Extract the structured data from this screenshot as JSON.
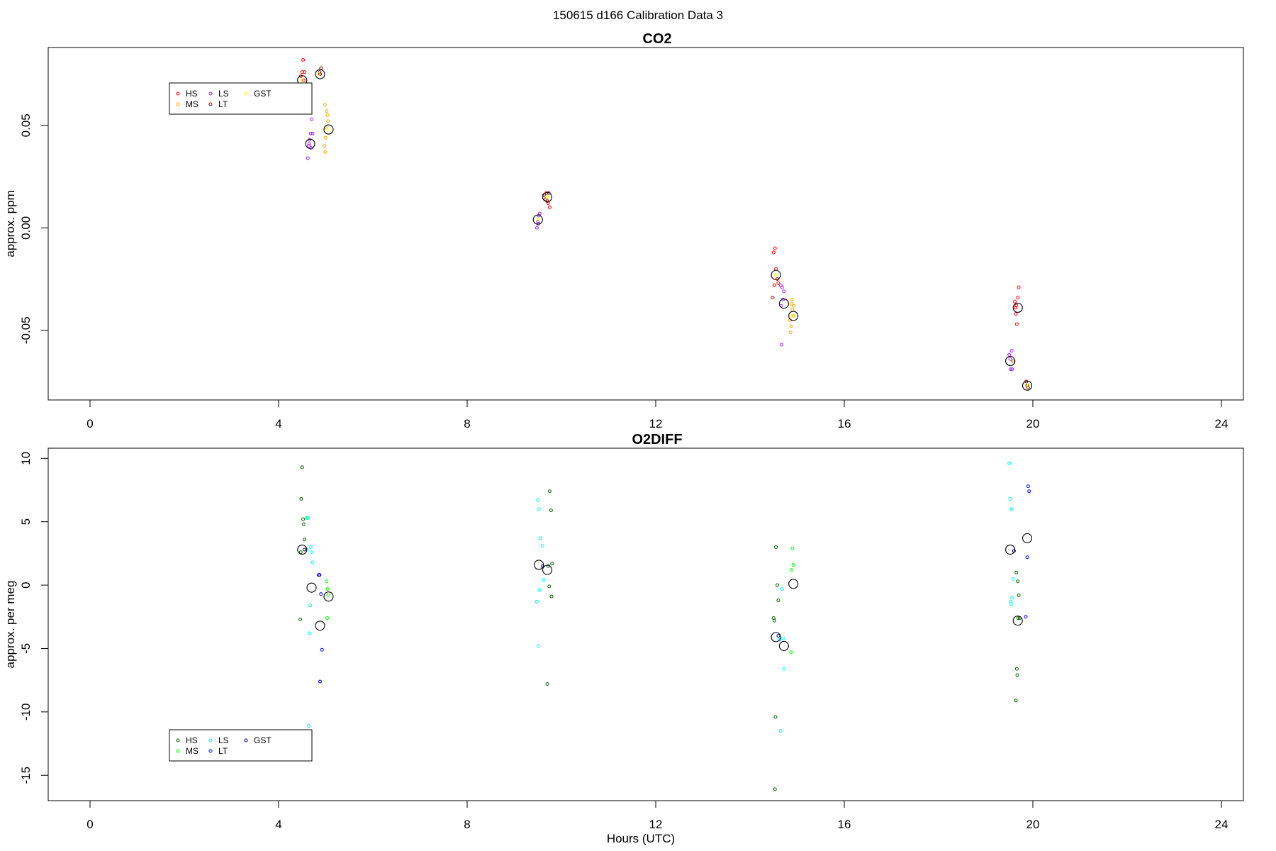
{
  "figure": {
    "title": "150615   d166   Calibration Data 3",
    "xlabel": "Hours (UTC)"
  },
  "chart_data": [
    {
      "type": "scatter",
      "title": "CO2",
      "xlabel": "",
      "ylabel": "approx. ppm",
      "xlim": [
        0,
        24
      ],
      "ylim": [
        -0.084,
        0.088
      ],
      "xticks": [
        0,
        4,
        8,
        12,
        16,
        20,
        24
      ],
      "xtick_labels": [
        "0",
        "4",
        "8",
        "12",
        "16",
        "20",
        "24"
      ],
      "yticks": [
        -0.05,
        0.0,
        0.05
      ],
      "ytick_labels": [
        "-0.05",
        "0.00",
        "0.05"
      ],
      "grid": false,
      "legend": {
        "placement": "top-left",
        "entries": [
          "HS",
          "MS",
          "LS",
          "LT",
          "GST"
        ]
      },
      "series": [
        {
          "name": "HS",
          "color": "#ff0000",
          "x": [
            4.47,
            4.5,
            4.52,
            4.55,
            4.53,
            4.5,
            9.68,
            9.72,
            9.75,
            14.5,
            14.53,
            14.55,
            14.58,
            14.52,
            14.6,
            14.48,
            19.62,
            19.65,
            19.7,
            19.68,
            19.64,
            19.66,
            19.63
          ],
          "y": [
            0.074,
            0.076,
            0.082,
            0.076,
            0.072,
            0.07,
            0.017,
            0.012,
            0.01,
            -0.012,
            -0.01,
            -0.02,
            -0.025,
            -0.028,
            -0.027,
            -0.034,
            -0.036,
            -0.038,
            -0.029,
            -0.034,
            -0.042,
            -0.047,
            -0.039
          ]
        },
        {
          "name": "MS",
          "color": "#ffa500",
          "x": [
            4.98,
            5.02,
            5.04,
            5.05,
            5.0,
            4.97,
            4.99,
            5.01,
            14.88,
            14.9,
            14.92,
            14.85,
            14.87,
            14.93,
            14.86,
            14.89
          ],
          "y": [
            0.06,
            0.057,
            0.055,
            0.052,
            0.044,
            0.04,
            0.037,
            0.049,
            -0.037,
            -0.04,
            -0.043,
            -0.045,
            -0.048,
            -0.038,
            -0.051,
            -0.035
          ]
        },
        {
          "name": "LS",
          "color": "#a020f0",
          "x": [
            4.62,
            4.65,
            4.68,
            4.7,
            4.72,
            4.64,
            4.66,
            4.69,
            9.48,
            9.5,
            9.52,
            9.54,
            9.51,
            14.65,
            14.68,
            14.72,
            14.7,
            14.67,
            14.66,
            19.5,
            19.52,
            19.55,
            19.58,
            19.53,
            19.56,
            19.6
          ],
          "y": [
            0.034,
            0.041,
            0.046,
            0.053,
            0.046,
            0.04,
            0.043,
            0.039,
            0.0,
            0.003,
            0.006,
            0.007,
            0.002,
            -0.028,
            -0.029,
            -0.031,
            -0.035,
            -0.057,
            -0.038,
            -0.062,
            -0.064,
            -0.06,
            -0.065,
            -0.069,
            -0.069,
            -0.065
          ]
        },
        {
          "name": "LT",
          "color": "#8b0000",
          "x": [
            4.87,
            4.88,
            4.9,
            9.63,
            9.66,
            9.7,
            9.73,
            19.86,
            19.9,
            19.88
          ],
          "y": [
            0.076,
            0.075,
            0.078,
            0.016,
            0.014,
            0.013,
            0.017,
            -0.075,
            -0.078,
            -0.077
          ]
        },
        {
          "name": "GST",
          "color": "#ffff00",
          "x": [
            4.5,
            4.85,
            5.05,
            9.5,
            9.7,
            14.55,
            14.9,
            19.6,
            19.9
          ],
          "y": [
            0.072,
            0.075,
            0.048,
            0.004,
            0.015,
            -0.023,
            -0.043,
            -0.065,
            -0.077
          ]
        },
        {
          "name": "",
          "color": "#000000",
          "big": true,
          "x": [
            4.5,
            4.88,
            5.06,
            4.67,
            9.5,
            9.7,
            14.55,
            14.72,
            14.92,
            19.68,
            19.52,
            19.88
          ],
          "y": [
            0.072,
            0.075,
            0.048,
            0.041,
            0.004,
            0.015,
            -0.023,
            -0.037,
            -0.043,
            -0.039,
            -0.065,
            -0.077
          ]
        }
      ]
    },
    {
      "type": "scatter",
      "title": "O2DIFF",
      "xlabel": "Hours (UTC)",
      "ylabel": "approx. per meg",
      "xlim": [
        0,
        24
      ],
      "ylim": [
        -17,
        10.8
      ],
      "xticks": [
        0,
        4,
        8,
        12,
        16,
        20,
        24
      ],
      "xtick_labels": [
        "0",
        "4",
        "8",
        "12",
        "16",
        "20",
        "24"
      ],
      "yticks": [
        -15,
        -10,
        -5,
        0,
        5,
        10
      ],
      "ytick_labels": [
        "-15",
        "-10",
        "-5",
        "0",
        "5",
        "10"
      ],
      "grid": false,
      "legend": {
        "placement": "bottom-left",
        "entries": [
          "HS",
          "MS",
          "LS",
          "LT",
          "GST"
        ]
      },
      "series": [
        {
          "name": "HS",
          "color": "#006400",
          "x": [
            4.5,
            4.48,
            4.52,
            4.55,
            4.53,
            4.47,
            4.46,
            9.75,
            9.78,
            9.8,
            9.72,
            9.74,
            9.79,
            9.7,
            14.55,
            14.58,
            14.6,
            14.52,
            14.5,
            14.54,
            14.53,
            19.65,
            19.68,
            19.7,
            19.72,
            19.66,
            19.67,
            19.64,
            19.69
          ],
          "y": [
            9.3,
            6.8,
            5.2,
            3.6,
            4.8,
            2.6,
            -2.7,
            7.4,
            5.9,
            1.7,
            1.5,
            -0.1,
            -0.9,
            -7.8,
            3.0,
            0.0,
            -1.2,
            -2.8,
            -2.6,
            -10.4,
            -16.1,
            1.0,
            0.3,
            -0.8,
            -2.6,
            -6.6,
            -7.1,
            -9.1,
            -2.6
          ]
        },
        {
          "name": "MS",
          "color": "#00ff00",
          "x": [
            4.6,
            5.02,
            5.04,
            5.05,
            5.03,
            14.9,
            14.92,
            14.88,
            14.87
          ],
          "y": [
            5.3,
            0.3,
            -0.3,
            -0.8,
            -2.6,
            2.9,
            1.6,
            1.2,
            -5.3
          ]
        },
        {
          "name": "LS",
          "color": "#00ffff",
          "x": [
            4.62,
            4.68,
            4.7,
            4.72,
            4.67,
            4.66,
            4.64,
            4.6,
            9.5,
            9.52,
            9.55,
            9.6,
            9.62,
            9.53,
            9.48,
            9.51,
            14.68,
            14.7,
            14.72,
            14.65,
            14.63,
            19.5,
            19.52,
            19.55,
            19.58,
            19.56,
            19.53,
            19.54
          ],
          "y": [
            5.3,
            3.0,
            2.6,
            1.8,
            -1.6,
            -3.8,
            -11.1,
            2.8,
            6.7,
            6.0,
            3.7,
            3.1,
            0.4,
            -0.4,
            -1.3,
            -4.8,
            -0.3,
            -4.2,
            -6.6,
            -11.5,
            -4.3,
            9.6,
            6.8,
            6.0,
            0.5,
            -1.0,
            -1.3,
            -1.5
          ]
        },
        {
          "name": "LT",
          "color": "#0000ff",
          "x": [
            4.87,
            4.9,
            4.92,
            4.88,
            19.9,
            19.92,
            19.88,
            19.85
          ],
          "y": [
            0.8,
            -0.7,
            -5.1,
            -7.6,
            7.8,
            7.4,
            2.2,
            -2.5
          ]
        },
        {
          "name": "GST",
          "color": "#00008b",
          "x": [
            4.55,
            4.85,
            9.6,
            14.6,
            19.6
          ],
          "y": [
            2.8,
            0.8,
            1.5,
            -4.0,
            2.7
          ]
        },
        {
          "name": "",
          "color": "#000000",
          "big": true,
          "x": [
            4.5,
            4.7,
            4.88,
            5.06,
            9.52,
            9.7,
            14.55,
            14.72,
            14.92,
            19.52,
            19.68,
            19.88
          ],
          "y": [
            2.8,
            -0.2,
            -3.2,
            -0.9,
            1.6,
            1.2,
            -4.1,
            -4.8,
            0.1,
            2.8,
            -2.8,
            3.7
          ]
        }
      ]
    }
  ]
}
